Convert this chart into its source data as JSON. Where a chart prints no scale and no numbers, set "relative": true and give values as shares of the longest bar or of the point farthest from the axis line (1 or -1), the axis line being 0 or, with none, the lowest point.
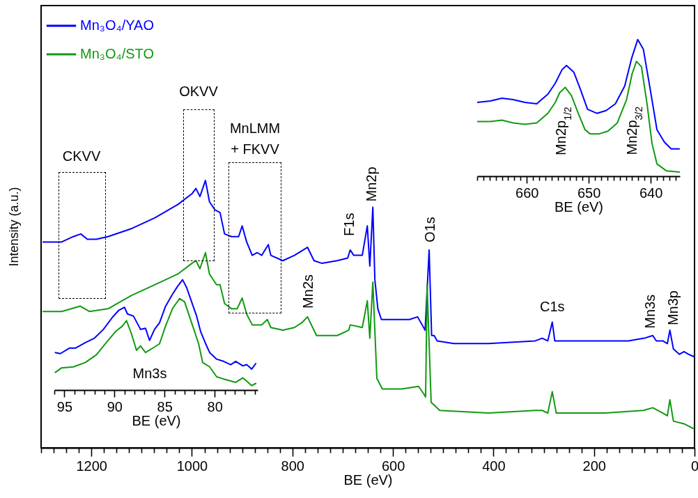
{
  "chart_data": [
    {
      "type": "line",
      "relative": true,
      "xlabel": "BE (eV)",
      "ylabel": "Intensity (a.u.)",
      "legend": "top left",
      "xlim": [
        1300,
        0
      ],
      "xticks": [
        {
          "value": 1300,
          "label": null
        },
        {
          "value": 1275,
          "label": null
        },
        {
          "value": 1250,
          "label": null
        },
        {
          "value": 1225,
          "label": null
        },
        1200,
        {
          "value": 1175,
          "label": null
        },
        {
          "value": 1150,
          "label": null
        },
        {
          "value": 1125,
          "label": null
        },
        {
          "value": 1100,
          "label": null
        },
        {
          "value": 1075,
          "label": null
        },
        {
          "value": 1050,
          "label": null
        },
        {
          "value": 1025,
          "label": null
        },
        1000,
        {
          "value": 975,
          "label": null
        },
        {
          "value": 950,
          "label": null
        },
        {
          "value": 925,
          "label": null
        },
        {
          "value": 900,
          "label": null
        },
        {
          "value": 875,
          "label": null
        },
        {
          "value": 850,
          "label": null
        },
        {
          "value": 825,
          "label": null
        },
        800,
        {
          "value": 775,
          "label": null
        },
        {
          "value": 750,
          "label": null
        },
        {
          "value": 725,
          "label": null
        },
        {
          "value": 700,
          "label": null
        },
        {
          "value": 675,
          "label": null
        },
        {
          "value": 650,
          "label": null
        },
        {
          "value": 625,
          "label": null
        },
        600,
        {
          "value": 575,
          "label": null
        },
        {
          "value": 550,
          "label": null
        },
        {
          "value": 525,
          "label": null
        },
        {
          "value": 500,
          "label": null
        },
        {
          "value": 475,
          "label": null
        },
        {
          "value": 450,
          "label": null
        },
        {
          "value": 425,
          "label": null
        },
        400,
        {
          "value": 375,
          "label": null
        },
        {
          "value": 350,
          "label": null
        },
        {
          "value": 325,
          "label": null
        },
        {
          "value": 300,
          "label": null
        },
        {
          "value": 275,
          "label": null
        },
        {
          "value": 250,
          "label": null
        },
        {
          "value": 225,
          "label": null
        },
        200,
        {
          "value": 175,
          "label": null
        },
        {
          "value": 150,
          "label": null
        },
        {
          "value": 125,
          "label": null
        },
        {
          "value": 100,
          "label": null
        },
        {
          "value": 75,
          "label": null
        },
        {
          "value": 50,
          "label": null
        },
        {
          "value": 25,
          "label": null
        },
        0
      ],
      "series": [
        {
          "name": "Mn₃O₄/YAO",
          "color": "#0000ff",
          "x": [
            1296,
            1259,
            1236,
            1221,
            1208,
            1190,
            1167,
            1120,
            1074,
            1028,
            1000,
            992,
            984,
            973,
            965,
            954,
            944,
            935,
            921,
            907,
            900,
            891,
            880,
            870,
            861,
            848,
            843,
            819,
            796,
            770,
            757,
            741,
            711,
            690,
            685,
            678,
            661,
            651,
            646,
            640,
            636,
            630,
            623,
            595,
            567,
            551,
            536,
            528,
            523,
            518,
            512,
            479,
            433,
            410,
            317,
            303,
            292,
            283,
            278,
            178,
            132,
            100,
            83,
            76,
            63,
            54,
            49,
            42,
            30,
            21,
            12,
            0
          ],
          "values": [
            0.77,
            0.77,
            0.79,
            0.8,
            0.78,
            0.78,
            0.79,
            0.82,
            0.86,
            0.91,
            0.95,
            0.97,
            0.94,
            1.0,
            0.92,
            0.89,
            0.88,
            0.8,
            0.79,
            0.79,
            0.83,
            0.77,
            0.72,
            0.73,
            0.72,
            0.76,
            0.72,
            0.7,
            0.72,
            0.75,
            0.7,
            0.69,
            0.7,
            0.71,
            0.74,
            0.72,
            0.72,
            0.83,
            0.68,
            0.9,
            0.63,
            0.52,
            0.48,
            0.48,
            0.48,
            0.49,
            0.44,
            0.74,
            0.42,
            0.42,
            0.4,
            0.39,
            0.39,
            0.39,
            0.4,
            0.41,
            0.4,
            0.47,
            0.4,
            0.4,
            0.4,
            0.41,
            0.42,
            0.4,
            0.4,
            0.39,
            0.44,
            0.37,
            0.35,
            0.36,
            0.35,
            0.34
          ]
        },
        {
          "name": "Mn₃O₄/STO",
          "color": "#119911",
          "x": [
            1296,
            1259,
            1222,
            1204,
            1167,
            1120,
            1074,
            1028,
            1000,
            992,
            984,
            973,
            965,
            951,
            944,
            935,
            921,
            910,
            900,
            891,
            880,
            861,
            850,
            843,
            819,
            796,
            780,
            770,
            752,
            734,
            711,
            688,
            685,
            661,
            651,
            646,
            640,
            632,
            621,
            583,
            549,
            538,
            535,
            532,
            524,
            518,
            507,
            410,
            317,
            303,
            292,
            283,
            275,
            178,
            102,
            83,
            63,
            54,
            49,
            42,
            21,
            0
          ],
          "values": [
            0.51,
            0.51,
            0.53,
            0.51,
            0.52,
            0.57,
            0.61,
            0.65,
            0.69,
            0.7,
            0.67,
            0.73,
            0.65,
            0.61,
            0.61,
            0.54,
            0.52,
            0.52,
            0.56,
            0.5,
            0.46,
            0.46,
            0.48,
            0.45,
            0.44,
            0.45,
            0.47,
            0.49,
            0.42,
            0.42,
            0.42,
            0.44,
            0.46,
            0.45,
            0.55,
            0.41,
            0.62,
            0.26,
            0.22,
            0.22,
            0.23,
            0.2,
            0.19,
            0.61,
            0.17,
            0.16,
            0.14,
            0.13,
            0.14,
            0.14,
            0.13,
            0.21,
            0.13,
            0.13,
            0.14,
            0.15,
            0.13,
            0.12,
            0.18,
            0.1,
            0.09,
            0.07
          ]
        }
      ],
      "annotations": [
        "CKVV",
        "OKVV",
        "MnLMM\n+ FKVV",
        {
          "text": "Mn2s",
          "x": 770,
          "y": 0.49
        },
        {
          "text": "F1s",
          "x": 685,
          "y": 0.74
        },
        {
          "text": "Mn2p",
          "x": 640,
          "y": 0.9
        },
        {
          "text": "O1s",
          "x": 528,
          "y": 0.74
        },
        {
          "text": "C1s",
          "x": 283,
          "y": 0.47
        },
        {
          "text": "Mn3s",
          "x": 83,
          "y": 0.42
        },
        {
          "text": "Mn3p",
          "x": 49,
          "y": 0.44
        }
      ]
    },
    {
      "type": "line",
      "relative": true,
      "xlabel": "BE (eV)",
      "xlim": [
        96,
        75.7
      ],
      "xticks": [
        {
          "value": 96,
          "label": null
        },
        95,
        {
          "value": 94,
          "label": null
        },
        {
          "value": 93,
          "label": null
        },
        {
          "value": 92,
          "label": null
        },
        {
          "value": 91,
          "label": null
        },
        90,
        {
          "value": 89,
          "label": null
        },
        {
          "value": 88,
          "label": null
        },
        {
          "value": 87,
          "label": null
        },
        {
          "value": 86,
          "label": null
        },
        85,
        {
          "value": 84,
          "label": null
        },
        {
          "value": 83,
          "label": null
        },
        {
          "value": 82,
          "label": null
        },
        {
          "value": 81,
          "label": null
        },
        80,
        {
          "value": 79,
          "label": null
        },
        {
          "value": 78,
          "label": null
        },
        {
          "value": 77,
          "label": null
        },
        {
          "value": 76,
          "label": null
        }
      ],
      "series": [
        {
          "color": "#0000ff",
          "x": [
            95.9,
            95.4,
            94.5,
            93.9,
            92.9,
            92.0,
            91.1,
            90.2,
            89.6,
            89.0,
            88.7,
            88.1,
            87.4,
            86.9,
            86.5,
            86.0,
            85.5,
            84.9,
            84.2,
            83.7,
            83.2,
            82.8,
            82.3,
            81.8,
            81.4,
            80.9,
            80.5,
            79.8,
            79.1,
            78.4,
            77.9,
            77.2,
            76.8,
            76.3,
            75.9
          ],
          "values": [
            0.34,
            0.33,
            0.38,
            0.38,
            0.43,
            0.47,
            0.55,
            0.66,
            0.72,
            0.75,
            0.69,
            0.67,
            0.55,
            0.56,
            0.45,
            0.55,
            0.61,
            0.76,
            0.87,
            0.94,
            1.0,
            0.93,
            0.8,
            0.67,
            0.53,
            0.42,
            0.34,
            0.28,
            0.26,
            0.23,
            0.26,
            0.22,
            0.23,
            0.19,
            0.24
          ]
        },
        {
          "color": "#119911",
          "x": [
            95.9,
            95.3,
            94.1,
            92.9,
            91.8,
            90.9,
            89.9,
            89.2,
            88.8,
            88.3,
            87.8,
            87.4,
            86.9,
            86.0,
            85.5,
            84.9,
            84.2,
            83.5,
            83.0,
            82.3,
            81.6,
            81.2,
            80.5,
            79.8,
            79.1,
            77.9,
            77.2,
            76.8,
            76.3,
            75.9
          ],
          "values": [
            0.16,
            0.2,
            0.21,
            0.25,
            0.32,
            0.42,
            0.53,
            0.58,
            0.63,
            0.51,
            0.36,
            0.4,
            0.34,
            0.39,
            0.42,
            0.58,
            0.74,
            0.83,
            0.8,
            0.61,
            0.42,
            0.25,
            0.21,
            0.12,
            0.1,
            0.07,
            0.11,
            0.08,
            0.04,
            0.06
          ]
        }
      ],
      "annotations": [
        "Mn3s"
      ]
    },
    {
      "type": "line",
      "relative": true,
      "xlabel": "BE (eV)",
      "xlim": [
        668,
        635.3
      ],
      "xticks": [
        {
          "value": 668,
          "label": null
        },
        {
          "value": 667,
          "label": null
        },
        {
          "value": 666,
          "label": null
        },
        {
          "value": 665,
          "label": null
        },
        {
          "value": 664,
          "label": null
        },
        {
          "value": 663,
          "label": null
        },
        {
          "value": 662,
          "label": null
        },
        {
          "value": 661,
          "label": null
        },
        660,
        {
          "value": 659,
          "label": null
        },
        {
          "value": 658,
          "label": null
        },
        {
          "value": 657,
          "label": null
        },
        {
          "value": 656,
          "label": null
        },
        {
          "value": 655,
          "label": null
        },
        {
          "value": 654,
          "label": null
        },
        {
          "value": 653,
          "label": null
        },
        {
          "value": 652,
          "label": null
        },
        {
          "value": 651,
          "label": null
        },
        650,
        {
          "value": 649,
          "label": null
        },
        {
          "value": 648,
          "label": null
        },
        {
          "value": 647,
          "label": null
        },
        {
          "value": 646,
          "label": null
        },
        {
          "value": 645,
          "label": null
        },
        {
          "value": 644,
          "label": null
        },
        {
          "value": 643,
          "label": null
        },
        {
          "value": 642,
          "label": null
        },
        {
          "value": 641,
          "label": null
        },
        640,
        {
          "value": 639,
          "label": null
        },
        {
          "value": 638,
          "label": null
        },
        {
          "value": 637,
          "label": null
        },
        {
          "value": 636,
          "label": null
        }
      ],
      "series": [
        {
          "color": "#0000ff",
          "x": [
            668.0,
            665.9,
            664.0,
            662.2,
            660.3,
            658.4,
            656.6,
            655.4,
            654.3,
            653.6,
            652.4,
            651.3,
            650.2,
            648.7,
            647.2,
            645.7,
            644.2,
            643.1,
            642.1,
            641.2,
            640.1,
            639.0,
            637.8,
            636.7,
            635.4
          ],
          "values": [
            0.54,
            0.55,
            0.57,
            0.56,
            0.54,
            0.53,
            0.6,
            0.68,
            0.78,
            0.81,
            0.76,
            0.63,
            0.49,
            0.46,
            0.48,
            0.53,
            0.66,
            0.86,
            1.0,
            0.93,
            0.64,
            0.34,
            0.25,
            0.2,
            0.2
          ]
        },
        {
          "color": "#119911",
          "x": [
            668.0,
            665.9,
            664.0,
            662.2,
            660.3,
            658.4,
            656.6,
            655.4,
            654.7,
            653.8,
            652.8,
            651.7,
            650.6,
            649.8,
            648.3,
            646.9,
            645.4,
            643.9,
            643.0,
            642.3,
            641.5,
            640.6,
            639.8,
            639.0,
            637.5,
            635.4
          ],
          "values": [
            0.4,
            0.4,
            0.41,
            0.39,
            0.38,
            0.39,
            0.46,
            0.54,
            0.61,
            0.65,
            0.59,
            0.46,
            0.34,
            0.31,
            0.31,
            0.33,
            0.39,
            0.56,
            0.75,
            0.84,
            0.8,
            0.53,
            0.24,
            0.09,
            0.04,
            0.03
          ]
        }
      ],
      "annotations": [
        {
          "text": "Mn2p$_{1/2}$",
          "x": 653.8,
          "y": 0.65
        },
        "Mn2p$_{3/2}$"
      ]
    }
  ]
}
